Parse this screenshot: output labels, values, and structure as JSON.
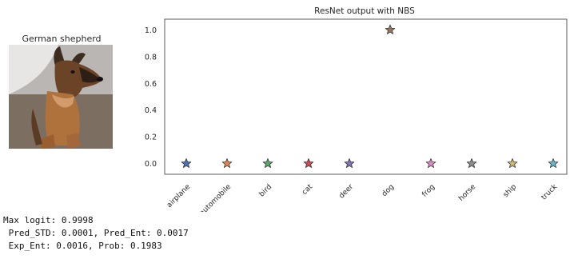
{
  "image_panel": {
    "title": "German shepherd",
    "photo_subject": "german-shepherd-dog-photo"
  },
  "chart_data": {
    "type": "scatter",
    "title": "ResNet output with NBS",
    "marker": "star",
    "categories": [
      "airplane",
      "automobile",
      "bird",
      "cat",
      "deer",
      "dog",
      "frog",
      "horse",
      "ship",
      "truck"
    ],
    "values": [
      0.0,
      0.0,
      0.0,
      0.0,
      0.0,
      1.0,
      0.0,
      0.0,
      0.0,
      0.0
    ],
    "colors": [
      "#4c72b0",
      "#dd8452",
      "#55a868",
      "#c44e52",
      "#8172b3",
      "#937860",
      "#da8bc3",
      "#8c8c8c",
      "#ccb974",
      "#64b5cd"
    ],
    "yticks": [
      "0.0",
      "0.2",
      "0.4",
      "0.6",
      "0.8",
      "1.0"
    ],
    "ylim": [
      -0.08,
      1.08
    ],
    "grid": false
  },
  "readout": {
    "lines": [
      "Max logit: 0.9998",
      " Pred_STD: 0.0001, Pred_Ent: 0.0017",
      " Exp_Ent: 0.0016, Prob: 0.1983"
    ]
  }
}
